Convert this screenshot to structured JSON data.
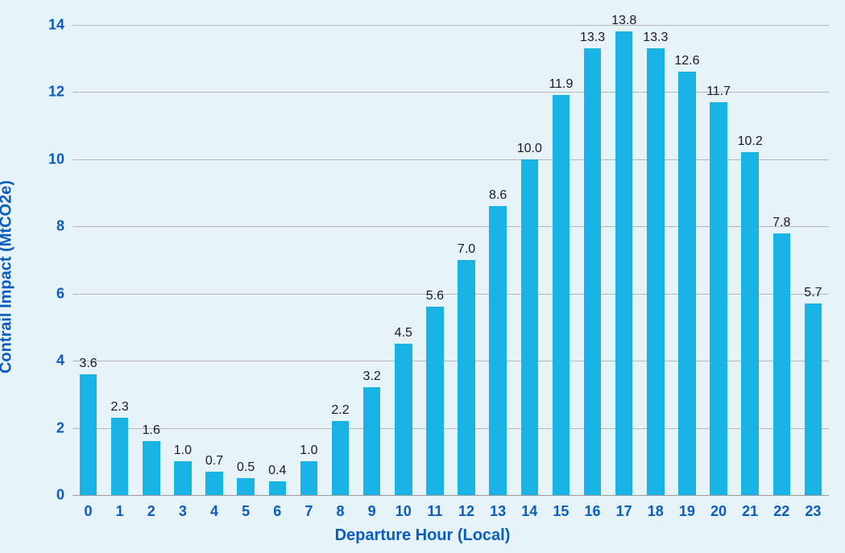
{
  "chart": {
    "type": "bar",
    "ylabel": "Contrail Impact (MtCO2e)",
    "xlabel": "Departure Hour (Local)",
    "ylim_min": 0,
    "ylim_max": 14.5,
    "yticks": [
      0,
      2,
      4,
      6,
      8,
      10,
      12,
      14
    ],
    "ytick_step": 2,
    "background_color": "#e6f4fa",
    "bar_color": "#19b3e6",
    "grid_color": "#b7b7b7",
    "axis_color": "#9d9d9d",
    "ylabel_color": "#0b5cc1",
    "xlabel_color": "#0b5cc1",
    "tick_color": "#0b5cc1",
    "value_label_color": "#1a1a1a",
    "ylabel_fontsize": 20,
    "xlabel_fontsize": 20,
    "tick_fontsize": 18,
    "value_label_fontsize": 16,
    "bar_width_ratio": 0.55,
    "categories": [
      "0",
      "1",
      "2",
      "3",
      "4",
      "5",
      "6",
      "7",
      "8",
      "9",
      "10",
      "11",
      "12",
      "13",
      "14",
      "15",
      "16",
      "17",
      "18",
      "19",
      "20",
      "21",
      "22",
      "23"
    ],
    "values": [
      3.6,
      2.3,
      1.6,
      1.0,
      0.7,
      0.5,
      0.4,
      1.0,
      2.2,
      3.2,
      4.5,
      5.6,
      7.0,
      8.6,
      10.0,
      11.9,
      13.3,
      13.8,
      13.3,
      12.6,
      11.7,
      10.2,
      7.8,
      5.7
    ],
    "value_labels": [
      "3.6",
      "2.3",
      "1.6",
      "1.0",
      "0.7",
      "0.5",
      "0.4",
      "1.0",
      "2.2",
      "3.2",
      "4.5",
      "5.6",
      "7.0",
      "8.6",
      "10.0",
      "11.9",
      "13.3",
      "13.8",
      "13.3",
      "12.6",
      "11.7",
      "10.2",
      "7.8",
      "5.7"
    ]
  }
}
